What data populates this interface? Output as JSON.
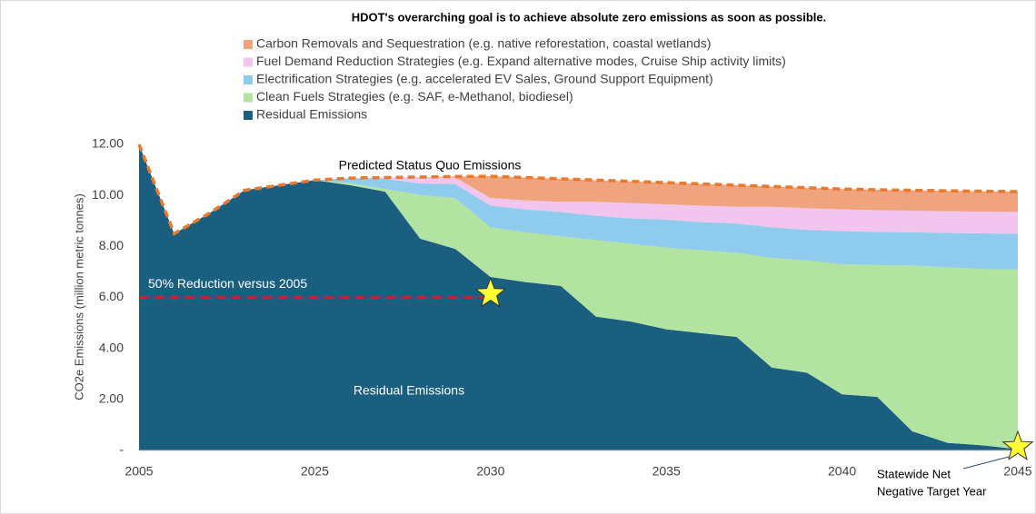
{
  "chart_data": {
    "type": "stacked_area",
    "title": "HDOT's overarching goal is to achieve absolute zero emissions as soon as possible.",
    "y_label": "CO2e Emissions (million metric tonnes)",
    "categories": [
      "2005",
      null,
      null,
      null,
      null,
      "2025",
      null,
      null,
      null,
      null,
      "2030",
      null,
      null,
      null,
      null,
      "2035",
      null,
      null,
      null,
      null,
      "2040",
      null,
      null,
      null,
      null,
      "2045"
    ],
    "series": [
      {
        "name": "Carbon Removals and Sequestration (e.g. native reforestation, coastal wetlands)",
        "color": "#f0a47e",
        "values": [
          0,
          0,
          0,
          0,
          0,
          0,
          0,
          0,
          0,
          0.05,
          0.85,
          0.9,
          0.9,
          0.85,
          0.85,
          0.85,
          0.85,
          0.85,
          0.8,
          0.8,
          0.8,
          0.8,
          0.8,
          0.8,
          0.8,
          0.8
        ]
      },
      {
        "name": "Fuel Demand Reduction Strategies (e.g. Expand alternative modes, Cruise Ship activity limits)",
        "color": "#f2c5ee",
        "values": [
          0,
          0,
          0,
          0,
          0,
          0,
          0,
          0.05,
          0.25,
          0.25,
          0.3,
          0.35,
          0.4,
          0.55,
          0.6,
          0.6,
          0.65,
          0.65,
          0.8,
          0.85,
          0.85,
          0.85,
          0.85,
          0.85,
          0.85,
          0.85
        ]
      },
      {
        "name": "Electrification Strategies (e.g. accelerated EV Sales, Ground Support Equipment)",
        "color": "#8ecbec",
        "values": [
          0,
          0,
          0,
          0,
          0,
          0,
          0.2,
          0.4,
          0.45,
          0.55,
          0.85,
          0.9,
          0.95,
          0.95,
          1.0,
          1.1,
          1.1,
          1.15,
          1.2,
          1.2,
          1.3,
          1.3,
          1.3,
          1.35,
          1.4,
          1.4
        ]
      },
      {
        "name": "Clean Fuels Strategies (e.g. SAF, e-Methanol, biodiesel)",
        "color": "#b3e3a1",
        "values": [
          0,
          0,
          0,
          0,
          0,
          0,
          0.08,
          0.1,
          1.72,
          1.99,
          1.95,
          1.95,
          1.95,
          3.0,
          3.05,
          3.2,
          3.25,
          3.3,
          4.3,
          4.4,
          5.1,
          5.17,
          6.5,
          6.88,
          6.91,
          7.05
        ]
      },
      {
        "name": "Residual Emissions",
        "color": "#1a5e80",
        "values": [
          12.0,
          8.5,
          9.3,
          10.2,
          10.4,
          10.6,
          10.4,
          10.15,
          8.3,
          7.9,
          6.8,
          6.6,
          6.45,
          5.25,
          5.05,
          4.75,
          4.6,
          4.45,
          3.25,
          3.05,
          2.2,
          2.1,
          0.75,
          0.3,
          0.2,
          0.05
        ]
      }
    ],
    "status_quo": {
      "name": "Predicted Status Quo Emissions",
      "color": "#e8792e",
      "values": [
        12.0,
        8.5,
        9.3,
        10.2,
        10.4,
        10.6,
        10.68,
        10.7,
        10.72,
        10.74,
        10.75,
        10.7,
        10.65,
        10.6,
        10.55,
        10.5,
        10.45,
        10.4,
        10.35,
        10.3,
        10.25,
        10.22,
        10.2,
        10.18,
        10.16,
        10.15
      ]
    },
    "reduction_line": {
      "label": "50% Reduction versus 2005",
      "value": 6,
      "from": "2005",
      "to": "2030",
      "color": "#c0272d"
    },
    "markers": [
      {
        "category": "2030",
        "value": 6
      },
      {
        "category": "2045",
        "value": 0,
        "label": [
          "Statewide Net",
          "Negative Target Year"
        ]
      }
    ],
    "area_label": "Residual Emissions",
    "ylim": [
      0,
      12
    ],
    "yticks": [
      {
        "value": 0,
        "label": "-"
      },
      {
        "value": 2,
        "label": "2.00"
      },
      {
        "value": 4,
        "label": "4.00"
      },
      {
        "value": 6,
        "label": "6.00"
      },
      {
        "value": 8,
        "label": "8.00"
      },
      {
        "value": 10,
        "label": "10.00"
      },
      {
        "value": 12,
        "label": "12.00"
      }
    ]
  }
}
